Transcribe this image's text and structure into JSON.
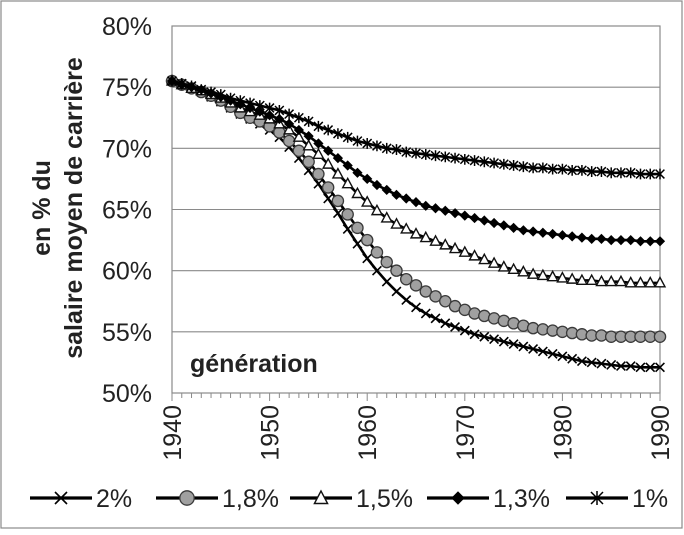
{
  "chart_data": {
    "type": "line",
    "title": "",
    "xlabel": "génération",
    "ylabel_lines": [
      "en % du",
      "salaire moyen de carrière"
    ],
    "xlim": [
      1940,
      1990
    ],
    "ylim": [
      50,
      80
    ],
    "x_ticks": [
      1940,
      1950,
      1960,
      1970,
      1980,
      1990
    ],
    "y_ticks": [
      50,
      55,
      60,
      65,
      70,
      75,
      80
    ],
    "y_tick_format": "percent",
    "grid": "horizontal",
    "legend_position": "bottom",
    "x": [
      1940,
      1941,
      1942,
      1943,
      1944,
      1945,
      1946,
      1947,
      1948,
      1949,
      1950,
      1951,
      1952,
      1953,
      1954,
      1955,
      1956,
      1957,
      1958,
      1959,
      1960,
      1961,
      1962,
      1963,
      1964,
      1965,
      1966,
      1967,
      1968,
      1969,
      1970,
      1971,
      1972,
      1973,
      1974,
      1975,
      1976,
      1977,
      1978,
      1979,
      1980,
      1981,
      1982,
      1983,
      1984,
      1985,
      1986,
      1987,
      1988,
      1989,
      1990
    ],
    "series": [
      {
        "name": "2%",
        "marker": "x",
        "color": "#000000",
        "values": [
          75.5,
          75.2,
          74.9,
          74.6,
          74.2,
          73.8,
          73.3,
          72.8,
          72.4,
          72.0,
          71.5,
          70.9,
          70.1,
          69.2,
          68.2,
          67.1,
          65.9,
          64.7,
          63.4,
          62.2,
          61.0,
          60.0,
          59.1,
          58.3,
          57.6,
          57.0,
          56.5,
          56.1,
          55.7,
          55.4,
          55.1,
          54.8,
          54.6,
          54.4,
          54.2,
          54.0,
          53.8,
          53.6,
          53.4,
          53.2,
          53.0,
          52.8,
          52.6,
          52.5,
          52.4,
          52.3,
          52.2,
          52.2,
          52.1,
          52.1,
          52.1
        ]
      },
      {
        "name": "1,8%",
        "marker": "circle",
        "color": "#000000",
        "values": [
          75.5,
          75.2,
          74.9,
          74.6,
          74.3,
          73.9,
          73.4,
          72.9,
          72.5,
          72.2,
          71.8,
          71.3,
          70.6,
          69.8,
          68.9,
          67.9,
          66.8,
          65.7,
          64.6,
          63.5,
          62.5,
          61.5,
          60.7,
          60.0,
          59.3,
          58.8,
          58.3,
          57.9,
          57.5,
          57.1,
          56.8,
          56.5,
          56.3,
          56.1,
          55.9,
          55.7,
          55.5,
          55.3,
          55.2,
          55.1,
          55.0,
          54.9,
          54.8,
          54.7,
          54.7,
          54.6,
          54.6,
          54.6,
          54.6,
          54.6,
          54.6
        ]
      },
      {
        "name": "1,5%",
        "marker": "triangle",
        "color": "#000000",
        "values": [
          75.5,
          75.2,
          74.9,
          74.7,
          74.4,
          74.1,
          73.7,
          73.3,
          73.0,
          72.7,
          72.4,
          72.0,
          71.5,
          70.9,
          70.2,
          69.5,
          68.7,
          67.9,
          67.1,
          66.3,
          65.6,
          64.9,
          64.3,
          63.8,
          63.4,
          63.0,
          62.7,
          62.4,
          62.1,
          61.8,
          61.5,
          61.2,
          60.9,
          60.6,
          60.3,
          60.1,
          59.9,
          59.7,
          59.6,
          59.5,
          59.4,
          59.3,
          59.2,
          59.2,
          59.1,
          59.1,
          59.1,
          59.0,
          59.0,
          59.0,
          59.0
        ]
      },
      {
        "name": "1,3%",
        "marker": "diamond",
        "color": "#000000",
        "values": [
          75.5,
          75.2,
          75.0,
          74.8,
          74.5,
          74.2,
          73.9,
          73.6,
          73.3,
          73.0,
          72.7,
          72.4,
          72.0,
          71.5,
          71.0,
          70.4,
          69.8,
          69.2,
          68.6,
          68.0,
          67.5,
          67.0,
          66.6,
          66.2,
          65.9,
          65.6,
          65.3,
          65.1,
          64.9,
          64.7,
          64.5,
          64.3,
          64.1,
          63.9,
          63.7,
          63.5,
          63.3,
          63.2,
          63.1,
          63.0,
          62.9,
          62.8,
          62.7,
          62.6,
          62.6,
          62.5,
          62.5,
          62.5,
          62.4,
          62.4,
          62.4
        ]
      },
      {
        "name": "1%",
        "marker": "star",
        "color": "#000000",
        "values": [
          75.5,
          75.3,
          75.1,
          74.8,
          74.6,
          74.4,
          74.1,
          73.9,
          73.7,
          73.5,
          73.3,
          73.1,
          72.8,
          72.5,
          72.2,
          71.8,
          71.5,
          71.2,
          70.9,
          70.6,
          70.4,
          70.2,
          70.0,
          69.9,
          69.7,
          69.6,
          69.5,
          69.4,
          69.3,
          69.2,
          69.1,
          69.0,
          68.9,
          68.8,
          68.7,
          68.6,
          68.5,
          68.4,
          68.4,
          68.3,
          68.3,
          68.2,
          68.2,
          68.1,
          68.1,
          68.0,
          68.0,
          68.0,
          67.9,
          67.9,
          67.9
        ]
      }
    ]
  }
}
